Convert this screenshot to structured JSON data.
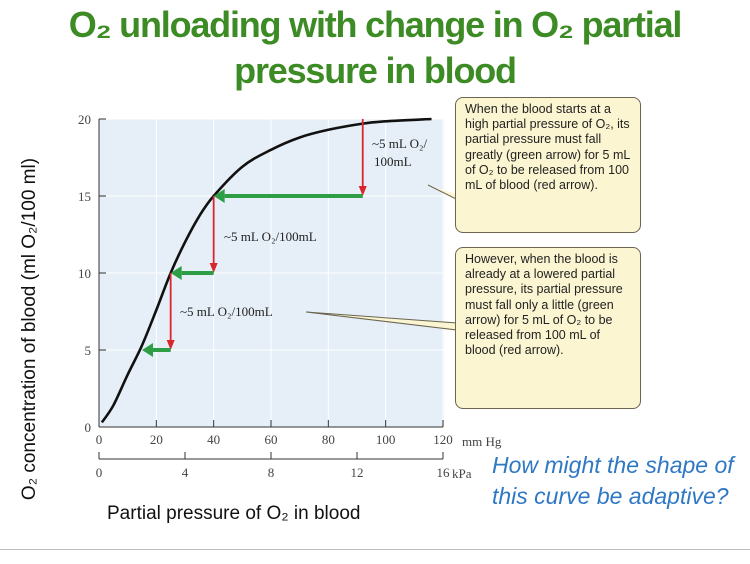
{
  "title": "O₂ unloading with change in O₂ partial pressure in blood",
  "question": "How might the shape of this curve be adaptive?",
  "callouts": [
    "When the blood starts at a high partial pressure of O₂, its partial pressure must fall greatly (green arrow) for 5 mL of O₂ to be released from 100 mL of blood (red arrow).",
    "However, when the blood is already at a lowered partial pressure, its partial pressure must fall only a little (green arrow) for 5 mL of O₂ to be released from 100 mL of blood (red arrow)."
  ],
  "colors": {
    "title": "#3d8b25",
    "question": "#2f78c4",
    "red_arrow": "#d8262b",
    "green_arrow": "#2e9e45",
    "plot_bg": "#e6eff8"
  },
  "chart_data": {
    "type": "line",
    "title": "O₂ unloading with change in O₂ partial pressure in blood",
    "xlabel": "Partial pressure of O₂ in blood",
    "ylabel": "O₂ concentration of blood (ml O₂/100 ml)",
    "xlim": [
      0,
      120
    ],
    "ylim": [
      0,
      20
    ],
    "x_unit": "mm Hg",
    "x_ticks": [
      "0",
      "20",
      "40",
      "60",
      "80",
      "100",
      "120"
    ],
    "y_ticks": [
      "0",
      "5",
      "10",
      "15",
      "20"
    ],
    "secondary_x": {
      "unit": "kPa",
      "ticks": [
        "0",
        "4",
        "8",
        "12",
        "16"
      ],
      "range": [
        0,
        16
      ]
    },
    "grid": true,
    "series": [
      {
        "x": [
          1,
          5,
          10,
          15,
          20,
          25,
          30,
          35,
          40,
          50,
          60,
          70,
          80,
          92,
          100,
          116
        ],
        "y": [
          0.3,
          1.4,
          3.4,
          5.3,
          7.6,
          10,
          12,
          13.7,
          15,
          16.9,
          18,
          18.8,
          19.3,
          19.7,
          19.85,
          20
        ]
      }
    ],
    "arrows": [
      {
        "color": "red",
        "from": [
          92,
          20
        ],
        "to": [
          92,
          15
        ]
      },
      {
        "color": "green",
        "from": [
          92,
          15
        ],
        "to": [
          40,
          15
        ]
      },
      {
        "color": "red",
        "from": [
          40,
          15
        ],
        "to": [
          40,
          10
        ]
      },
      {
        "color": "green",
        "from": [
          40,
          10
        ],
        "to": [
          25,
          10
        ]
      },
      {
        "color": "red",
        "from": [
          25,
          10
        ],
        "to": [
          25,
          5
        ]
      },
      {
        "color": "green",
        "from": [
          25,
          5
        ],
        "to": [
          15,
          5
        ]
      }
    ],
    "annotations": [
      "~5 mL O₂/",
      "100mL",
      "~5 mL O₂/100mL",
      "~5 mL O₂/100mL"
    ]
  }
}
